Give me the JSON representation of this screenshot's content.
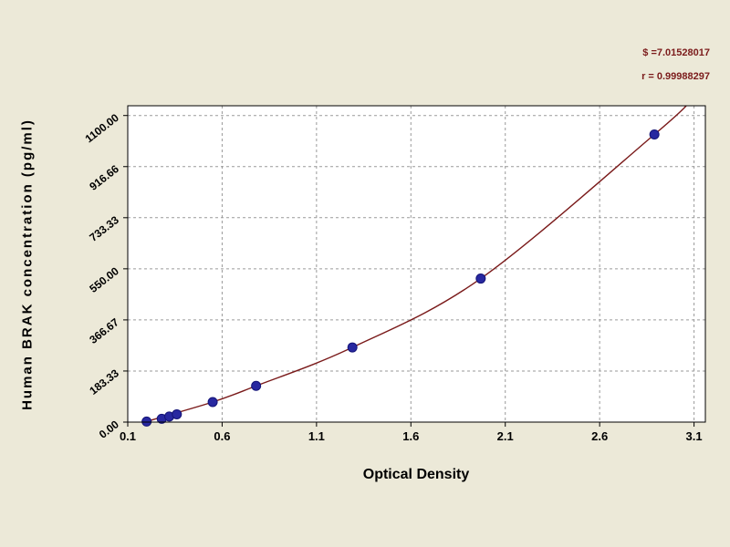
{
  "chart_data": {
    "type": "scatter",
    "title": "",
    "xlabel": "Optical Density",
    "ylabel": "Human BRAK concentration (pg/ml)",
    "annotations": [
      "$ =7.01528017",
      "r = 0.99988297"
    ],
    "x_ticks": [
      "0.1",
      "0.6",
      "1.1",
      "1.6",
      "2.1",
      "2.6",
      "3.1"
    ],
    "x_tick_values": [
      0.1,
      0.6,
      1.1,
      1.6,
      2.1,
      2.6,
      3.1
    ],
    "y_ticks": [
      "0.00",
      "183.33",
      "366.67",
      "550.00",
      "733.33",
      "916.66",
      "1100.00"
    ],
    "y_tick_values": [
      0,
      183.33,
      366.67,
      550,
      733.33,
      916.66,
      1100
    ],
    "xlim": [
      0.1,
      3.16
    ],
    "ylim": [
      0,
      1135
    ],
    "grid": true,
    "legend": false,
    "points": [
      [
        0.2,
        2
      ],
      [
        0.28,
        12
      ],
      [
        0.32,
        20
      ],
      [
        0.36,
        28
      ],
      [
        0.55,
        72
      ],
      [
        0.78,
        130
      ],
      [
        1.29,
        268
      ],
      [
        1.97,
        515
      ],
      [
        2.89,
        1032
      ]
    ],
    "curve_points": [
      [
        0.17,
        -10
      ],
      [
        0.2,
        2
      ],
      [
        0.55,
        72
      ],
      [
        0.78,
        130
      ],
      [
        1.29,
        268
      ],
      [
        1.97,
        515
      ],
      [
        2.89,
        1032
      ],
      [
        3.08,
        1150
      ]
    ],
    "colors": {
      "background": "#ece9d8",
      "plot_bg": "#ffffff",
      "grid": "#9a9a9a",
      "curve": "#7a1a1a",
      "marker": "#2828a0",
      "marker_edge": "#141478",
      "text": "#000000",
      "annotation": "#7b1b1b"
    }
  }
}
